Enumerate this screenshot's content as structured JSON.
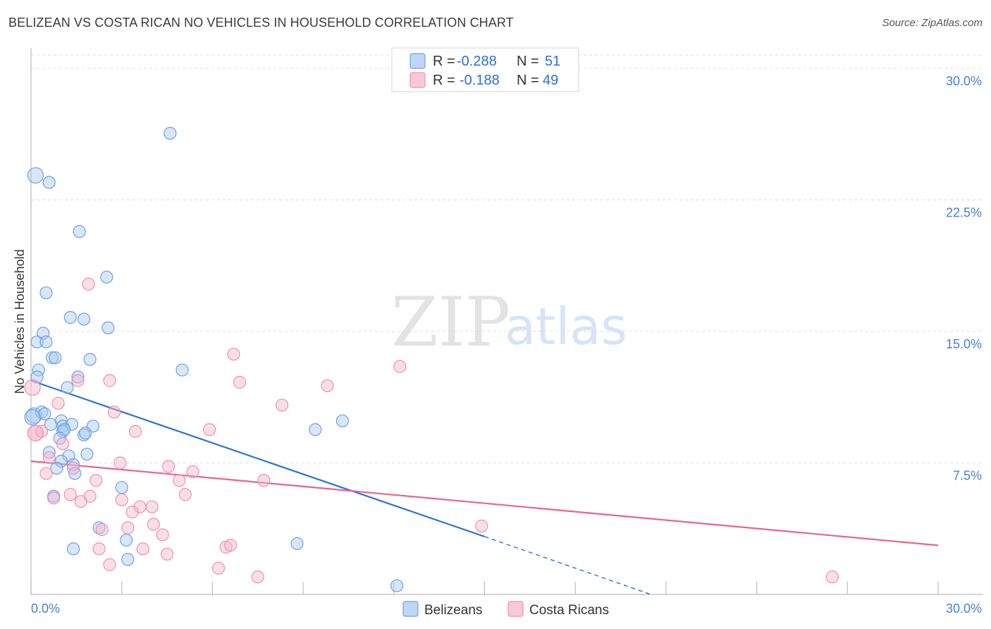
{
  "header": {
    "title": "BELIZEAN VS COSTA RICAN NO VEHICLES IN HOUSEHOLD CORRELATION CHART",
    "source": "Source: ZipAtlas.com"
  },
  "watermark": {
    "zip": "ZIP",
    "atlas": "atlas"
  },
  "legend": {
    "rows": [
      {
        "r_label": "R =",
        "r_value": "-0.288",
        "n_label": "N =",
        "n_value": "51",
        "color": "#a9c8f0"
      },
      {
        "r_label": "R =",
        "r_value": "-0.188",
        "n_label": "N =",
        "n_value": "49",
        "color": "#f6b8c9"
      }
    ]
  },
  "bottom_legend": [
    {
      "label": "Belizeans",
      "color": "#a9c8f0"
    },
    {
      "label": "Costa Ricans",
      "color": "#f6b8c9"
    }
  ],
  "chart_data": {
    "type": "scatter",
    "title": "BELIZEAN VS COSTA RICAN NO VEHICLES IN HOUSEHOLD CORRELATION CHART",
    "xlabel": "",
    "ylabel": "No Vehicles in Household",
    "xlim": [
      0,
      30
    ],
    "ylim": [
      0,
      30
    ],
    "x_tick_labels": [
      "0.0%",
      "30.0%"
    ],
    "y_tick_labels": [
      "7.5%",
      "15.0%",
      "22.5%",
      "30.0%"
    ],
    "y_ticks": [
      7.5,
      15.0,
      22.5,
      30.0
    ],
    "grid": true,
    "series": [
      {
        "name": "Belizeans",
        "color": "#6ea1e3",
        "line_color": "#2d72d2",
        "trend": {
          "x0": 0.0,
          "y0": 12.2,
          "x1": 15.0,
          "y1": 3.3,
          "dash_x1": 20.5,
          "dash_y1": 0.0
        },
        "points": [
          [
            4.6,
            26.3
          ],
          [
            0.15,
            23.9
          ],
          [
            0.6,
            23.5
          ],
          [
            1.6,
            20.7
          ],
          [
            2.5,
            18.1
          ],
          [
            0.5,
            17.2
          ],
          [
            1.3,
            15.8
          ],
          [
            1.75,
            15.7
          ],
          [
            2.55,
            15.2
          ],
          [
            0.4,
            14.9
          ],
          [
            0.2,
            14.4
          ],
          [
            0.5,
            14.4
          ],
          [
            0.7,
            13.5
          ],
          [
            0.8,
            13.5
          ],
          [
            1.95,
            13.4
          ],
          [
            5.0,
            12.8
          ],
          [
            0.25,
            12.8
          ],
          [
            0.2,
            12.4
          ],
          [
            1.55,
            12.4
          ],
          [
            1.2,
            11.8
          ],
          [
            0.1,
            10.2
          ],
          [
            0.35,
            10.4
          ],
          [
            0.45,
            10.3
          ],
          [
            1.0,
            9.9
          ],
          [
            0.65,
            9.7
          ],
          [
            1.05,
            9.6
          ],
          [
            1.35,
            9.7
          ],
          [
            2.05,
            9.6
          ],
          [
            1.05,
            9.3
          ],
          [
            1.1,
            9.4
          ],
          [
            1.75,
            9.1
          ],
          [
            1.8,
            9.2
          ],
          [
            9.4,
            9.4
          ],
          [
            10.3,
            9.9
          ],
          [
            0.95,
            8.9
          ],
          [
            0.6,
            8.1
          ],
          [
            1.25,
            7.9
          ],
          [
            1.85,
            8.0
          ],
          [
            1.0,
            7.6
          ],
          [
            1.4,
            7.4
          ],
          [
            0.85,
            7.2
          ],
          [
            1.45,
            6.9
          ],
          [
            3.0,
            6.1
          ],
          [
            0.75,
            5.6
          ],
          [
            2.25,
            3.8
          ],
          [
            3.15,
            3.1
          ],
          [
            1.4,
            2.6
          ],
          [
            8.8,
            2.9
          ],
          [
            3.2,
            2.0
          ],
          [
            12.1,
            0.5
          ],
          [
            0.05,
            10.1
          ]
        ]
      },
      {
        "name": "Costa Ricans",
        "color": "#f08db0",
        "line_color": "#e8648f",
        "trend": {
          "x0": 0.0,
          "y0": 7.6,
          "x1": 30.0,
          "y1": 2.8
        },
        "points": [
          [
            0.05,
            11.8
          ],
          [
            1.9,
            17.7
          ],
          [
            6.7,
            13.7
          ],
          [
            12.2,
            13.0
          ],
          [
            2.6,
            12.2
          ],
          [
            6.9,
            12.1
          ],
          [
            9.8,
            11.9
          ],
          [
            1.55,
            12.2
          ],
          [
            8.3,
            10.8
          ],
          [
            0.9,
            10.9
          ],
          [
            2.75,
            10.4
          ],
          [
            0.15,
            9.2
          ],
          [
            0.35,
            9.3
          ],
          [
            3.45,
            9.3
          ],
          [
            5.9,
            9.4
          ],
          [
            1.05,
            8.6
          ],
          [
            0.6,
            7.8
          ],
          [
            2.95,
            7.5
          ],
          [
            4.55,
            7.3
          ],
          [
            5.35,
            7.0
          ],
          [
            1.4,
            7.2
          ],
          [
            0.5,
            6.9
          ],
          [
            2.15,
            6.5
          ],
          [
            4.9,
            6.5
          ],
          [
            7.7,
            6.5
          ],
          [
            1.3,
            5.7
          ],
          [
            1.95,
            5.6
          ],
          [
            5.1,
            5.7
          ],
          [
            0.75,
            5.5
          ],
          [
            1.65,
            5.3
          ],
          [
            3.0,
            5.4
          ],
          [
            3.6,
            5.0
          ],
          [
            4.0,
            5.0
          ],
          [
            3.35,
            4.7
          ],
          [
            4.05,
            4.0
          ],
          [
            3.2,
            3.8
          ],
          [
            2.35,
            3.7
          ],
          [
            4.35,
            3.4
          ],
          [
            14.9,
            3.9
          ],
          [
            6.45,
            2.7
          ],
          [
            6.6,
            2.8
          ],
          [
            2.25,
            2.6
          ],
          [
            3.7,
            2.6
          ],
          [
            4.5,
            2.3
          ],
          [
            2.6,
            1.7
          ],
          [
            6.2,
            1.5
          ],
          [
            7.5,
            1.0
          ],
          [
            26.5,
            1.0
          ],
          [
            0.15,
            9.2
          ]
        ]
      }
    ]
  }
}
